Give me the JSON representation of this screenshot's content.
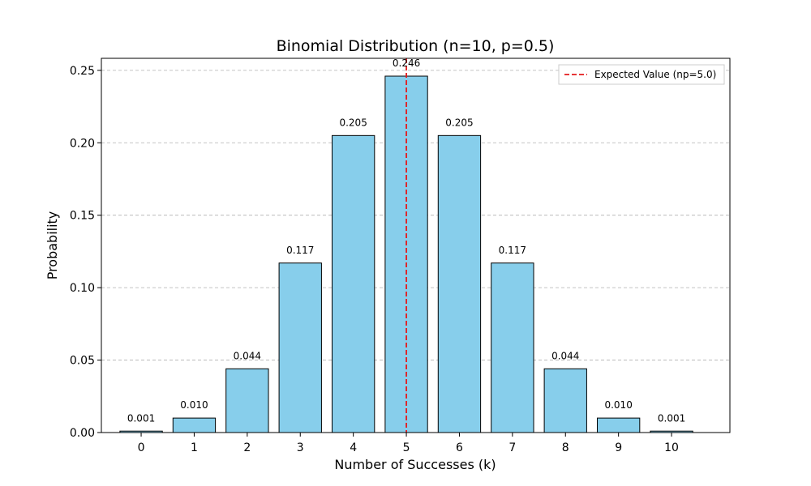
{
  "chart_data": {
    "type": "bar",
    "title": "Binomial Distribution (n=10, p=0.5)",
    "xlabel": "Number of Successes (k)",
    "ylabel": "Probability",
    "categories": [
      "0",
      "1",
      "2",
      "3",
      "4",
      "5",
      "6",
      "7",
      "8",
      "9",
      "10"
    ],
    "values": [
      0.001,
      0.01,
      0.044,
      0.117,
      0.205,
      0.246,
      0.205,
      0.117,
      0.044,
      0.01,
      0.001
    ],
    "data_labels": [
      "0.001",
      "0.010",
      "0.044",
      "0.117",
      "0.205",
      "0.246",
      "0.205",
      "0.117",
      "0.044",
      "0.010",
      "0.001"
    ],
    "xlim": [
      -0.75,
      11.1
    ],
    "ylim": [
      0,
      0.2583
    ],
    "yticks": [
      0,
      0.05,
      0.1,
      0.15,
      0.2,
      0.25
    ],
    "ytick_labels": [
      "0.00",
      "0.05",
      "0.10",
      "0.15",
      "0.20",
      "0.25"
    ],
    "grid": "y-dashed",
    "bar_color": "#87CEEB",
    "bar_edge_color": "#000000",
    "bar_width": 0.8,
    "expected_value": {
      "x": 5.0,
      "color": "#e41a1c",
      "label": "Expected Value (np=5.0)"
    },
    "legend": {
      "placement": "top-right",
      "entries": [
        "Expected Value (np=5.0)"
      ]
    }
  }
}
